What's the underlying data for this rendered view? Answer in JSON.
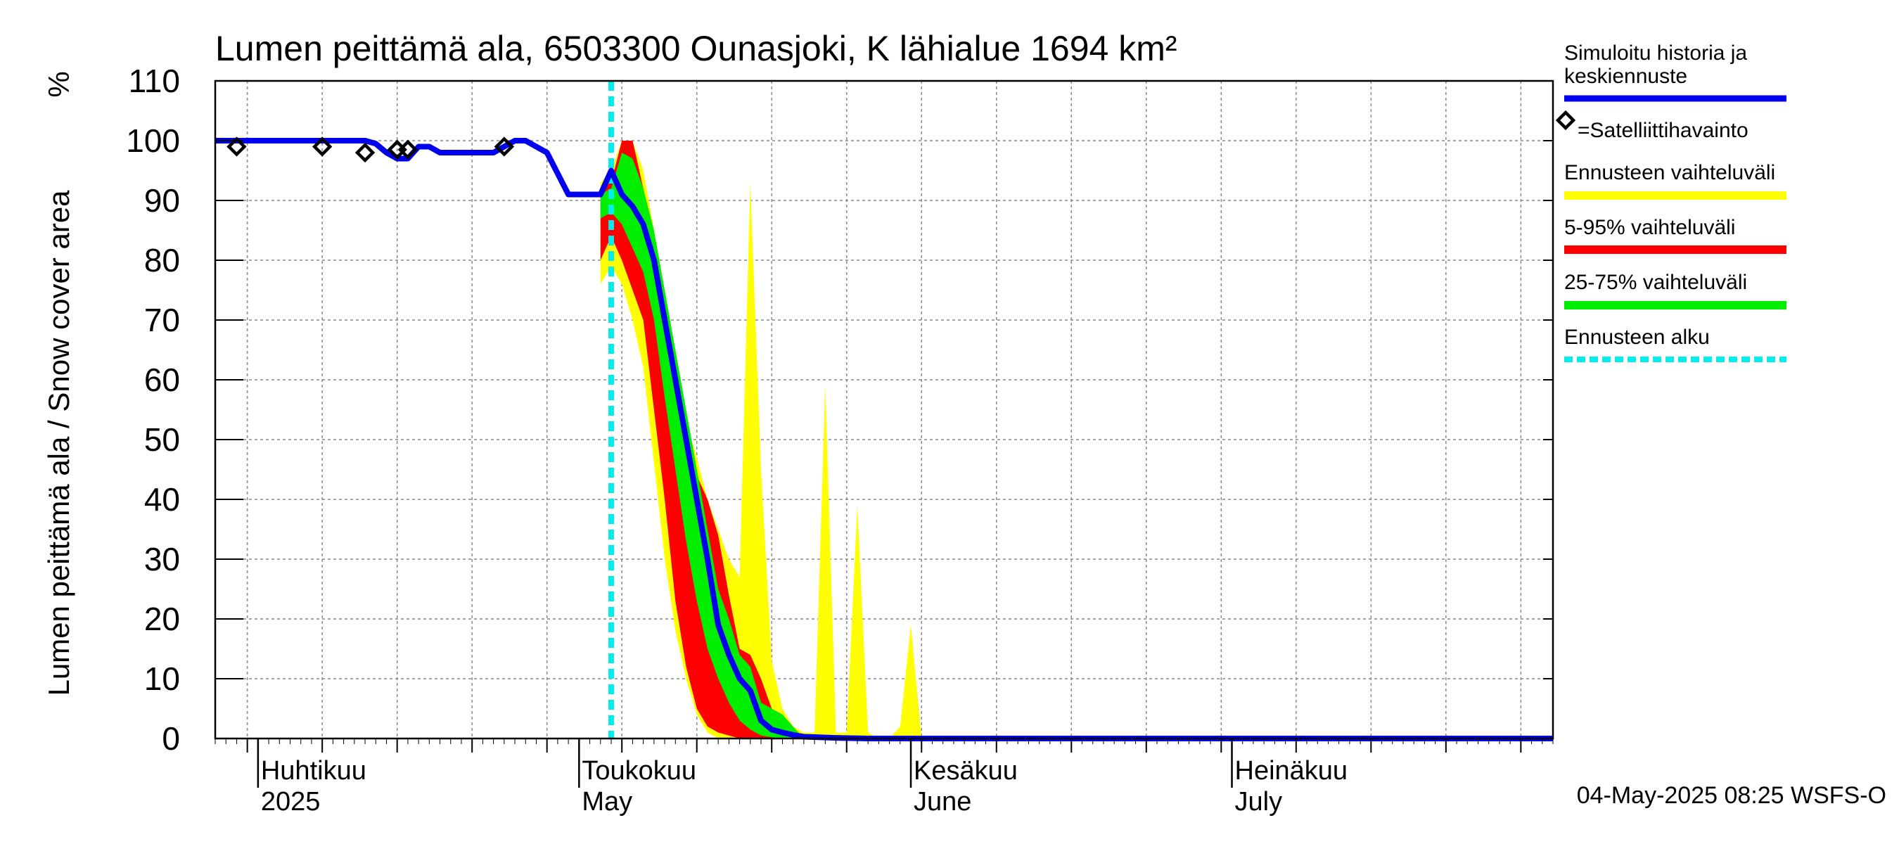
{
  "chart_data": {
    "type": "area",
    "title": "Lumen peittämä ala, 6503300 Ounasjoki, K lähialue 1694 km²",
    "ylabel": "Lumen peittämä ala / Snow cover area",
    "yunit": "%",
    "ylim": [
      0,
      110
    ],
    "yticks": [
      0,
      10,
      20,
      30,
      40,
      50,
      60,
      70,
      80,
      90,
      100,
      110
    ],
    "xlim": [
      "2025-03-28",
      "2025-07-31"
    ],
    "month_labels": [
      {
        "date": "2025-04-01",
        "fi": "Huhtikuu",
        "en": "2025"
      },
      {
        "date": "2025-05-01",
        "fi": "Toukokuu",
        "en": "May"
      },
      {
        "date": "2025-06-01",
        "fi": "Kesäkuu",
        "en": "June"
      },
      {
        "date": "2025-07-01",
        "fi": "Heinäkuu",
        "en": "July"
      }
    ],
    "forecast_start": "2025-05-04",
    "footer": "04-May-2025 08:25 WSFS-O",
    "colors": {
      "simulated": "#0000ee",
      "range_full": "#ffff00",
      "range_5_95": "#ff0000",
      "range_25_75": "#00ee00",
      "forecast_start": "#00eeee",
      "observation": "#000000"
    },
    "legend": [
      {
        "key": "simulated",
        "label": "Simuloitu historia ja keskiennuste"
      },
      {
        "key": "observation",
        "label": "=Satelliittihavainto"
      },
      {
        "key": "range_full",
        "label": "Ennusteen vaihteluväli"
      },
      {
        "key": "range_5_95",
        "label": "5-95% vaihteluväli"
      },
      {
        "key": "range_25_75",
        "label": "25-75% vaihteluväli"
      },
      {
        "key": "forecast_start",
        "label": "Ennusteen alku"
      }
    ],
    "series": [
      {
        "name": "Simuloitu historia ja keskiennuste",
        "x": [
          "2025-03-28",
          "2025-04-05",
          "2025-04-10",
          "2025-04-11",
          "2025-04-12",
          "2025-04-13",
          "2025-04-14",
          "2025-04-15",
          "2025-04-16",
          "2025-04-17",
          "2025-04-18",
          "2025-04-20",
          "2025-04-22",
          "2025-04-23",
          "2025-04-25",
          "2025-04-26",
          "2025-04-28",
          "2025-04-30",
          "2025-05-01",
          "2025-05-02",
          "2025-05-03",
          "2025-05-04",
          "2025-05-05",
          "2025-05-06",
          "2025-05-07",
          "2025-05-08",
          "2025-05-09",
          "2025-05-10",
          "2025-05-11",
          "2025-05-12",
          "2025-05-13",
          "2025-05-14",
          "2025-05-15",
          "2025-05-16",
          "2025-05-17",
          "2025-05-18",
          "2025-05-19",
          "2025-05-20",
          "2025-05-21",
          "2025-05-22",
          "2025-05-25",
          "2025-05-28",
          "2025-06-01",
          "2025-07-31"
        ],
        "values": [
          100,
          100,
          100,
          100,
          99.5,
          98,
          97,
          97,
          99,
          99,
          98,
          98,
          98,
          98,
          100,
          100,
          98,
          91,
          91,
          91,
          91,
          95,
          91,
          89,
          86,
          80,
          70,
          60,
          50,
          40,
          30,
          19,
          14,
          10,
          8,
          3,
          1.5,
          1,
          0.6,
          0.3,
          0.1,
          0,
          0,
          0
        ]
      },
      {
        "name": "Ennusteen vaihteluväli",
        "x": [
          "2025-05-03",
          "2025-05-04",
          "2025-05-05",
          "2025-05-06",
          "2025-05-07",
          "2025-05-08",
          "2025-05-09",
          "2025-05-10",
          "2025-05-11",
          "2025-05-12",
          "2025-05-13",
          "2025-05-14",
          "2025-05-15",
          "2025-05-16",
          "2025-05-17",
          "2025-05-18",
          "2025-05-19",
          "2025-05-20",
          "2025-05-21",
          "2025-05-22",
          "2025-05-23",
          "2025-05-24",
          "2025-05-25",
          "2025-05-26",
          "2025-05-27",
          "2025-05-28",
          "2025-05-29",
          "2025-05-30",
          "2025-05-31",
          "2025-06-01",
          "2025-06-02",
          "2025-06-03",
          "2025-06-04",
          "2025-06-05",
          "2025-06-06",
          "2025-06-07",
          "2025-06-08",
          "2025-06-09",
          "2025-06-10",
          "2025-06-11",
          "2025-06-12",
          "2025-06-13",
          "2025-06-14",
          "2025-06-15",
          "2025-06-16",
          "2025-06-17"
        ],
        "min": [
          76,
          79,
          76,
          70,
          62,
          46,
          30,
          18,
          10,
          4,
          1,
          0,
          0,
          0,
          0,
          0,
          0,
          0,
          0,
          0,
          0,
          0,
          0,
          0,
          0,
          0,
          0,
          0,
          0,
          0,
          0,
          0,
          0,
          0,
          0,
          0,
          0,
          0,
          0,
          0,
          0,
          0,
          0,
          0,
          0,
          0
        ],
        "max": [
          93,
          95,
          100,
          100,
          95,
          85,
          73,
          62,
          53,
          47,
          40,
          35,
          30,
          27,
          93,
          45,
          13,
          5,
          2,
          1,
          1,
          59,
          1,
          1,
          39,
          1,
          0,
          0,
          2,
          19,
          0,
          0,
          0,
          0,
          0,
          0,
          0,
          0,
          0,
          0,
          0,
          0,
          0,
          0,
          0,
          0
        ]
      },
      {
        "name": "5-95% vaihteluväli",
        "x": [
          "2025-05-03",
          "2025-05-04",
          "2025-05-05",
          "2025-05-06",
          "2025-05-07",
          "2025-05-08",
          "2025-05-09",
          "2025-05-10",
          "2025-05-11",
          "2025-05-12",
          "2025-05-13",
          "2025-05-14",
          "2025-05-15",
          "2025-05-16",
          "2025-05-17",
          "2025-05-18",
          "2025-05-19",
          "2025-05-20",
          "2025-05-21",
          "2025-05-22",
          "2025-05-23"
        ],
        "min": [
          80,
          84,
          80,
          75,
          70,
          55,
          40,
          23,
          12,
          5,
          2,
          1,
          0.5,
          0,
          0,
          0,
          0,
          0,
          0,
          0,
          0
        ],
        "max": [
          92,
          93,
          100,
          100,
          92,
          82,
          70,
          60,
          52,
          44,
          40,
          34,
          24,
          15,
          14,
          10,
          5,
          3,
          1,
          0.5,
          0
        ]
      },
      {
        "name": "25-75% vaihteluväli",
        "x": [
          "2025-05-03",
          "2025-05-04",
          "2025-05-05",
          "2025-05-06",
          "2025-05-07",
          "2025-05-08",
          "2025-05-09",
          "2025-05-10",
          "2025-05-11",
          "2025-05-12",
          "2025-05-13",
          "2025-05-14",
          "2025-05-15",
          "2025-05-16",
          "2025-05-17",
          "2025-05-18",
          "2025-05-19",
          "2025-05-20",
          "2025-05-21",
          "2025-05-22"
        ],
        "min": [
          87,
          88,
          86,
          82,
          78,
          70,
          57,
          45,
          33,
          23,
          15,
          10,
          6,
          3,
          1.5,
          0.5,
          0.2,
          0,
          0,
          0
        ],
        "max": [
          91,
          92,
          98,
          97,
          92,
          85,
          75,
          65,
          55,
          45,
          35,
          25,
          20,
          14,
          12,
          6,
          5,
          4,
          2,
          0
        ]
      }
    ],
    "observations": {
      "name": "Satelliittihavainto",
      "x": [
        "2025-03-30",
        "2025-04-07",
        "2025-04-11",
        "2025-04-14",
        "2025-04-15",
        "2025-04-24"
      ],
      "values": [
        99,
        99,
        98,
        98.5,
        98.5,
        99
      ]
    }
  }
}
